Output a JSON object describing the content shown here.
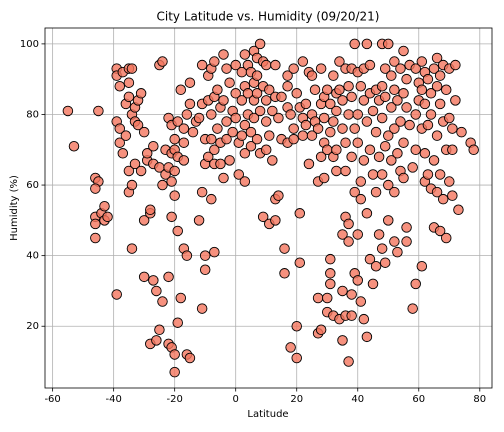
{
  "chart_data": {
    "type": "scatter",
    "title": "City Latitude vs. Humidity (09/20/21)",
    "x_label": "Latitude",
    "y_label": "Humidity (%)",
    "color": "#f4765e",
    "edgecolor": "#000000",
    "grid": true,
    "xlim": [
      -62.5,
      84
    ],
    "ylim": [
      2.5,
      104.5
    ],
    "xticks": [
      -60,
      -40,
      -20,
      0,
      20,
      40,
      60,
      80
    ],
    "yticks": [
      20,
      40,
      60,
      80,
      100
    ],
    "x": [
      -55,
      -53,
      -46,
      -45,
      -46,
      -46,
      -46,
      -46,
      -45,
      -44,
      -43,
      -43,
      -42,
      -39,
      -39,
      -39,
      -39,
      -38,
      -38,
      -37,
      -37,
      -38,
      -36,
      -36,
      -35,
      -35,
      -35,
      -35,
      -35,
      -34,
      -34,
      -34,
      -34,
      -33,
      -33,
      -33,
      -32,
      -32,
      -31,
      -31,
      -30,
      -30,
      -30,
      -29,
      -29,
      -28,
      -28,
      -28,
      -27,
      -27,
      -27,
      -26,
      -26,
      -25,
      -25,
      -25,
      -24,
      -24,
      -24,
      -23,
      -23,
      -22,
      -22,
      -22,
      -22,
      -21,
      -21,
      -21,
      -21,
      -21,
      -20,
      -20,
      -20,
      -20,
      -20,
      -20,
      -19,
      -19,
      -19,
      -19,
      -18,
      -18,
      -17,
      -17,
      -17,
      -17,
      -16,
      -16,
      -16,
      -15,
      -15,
      -15,
      -14,
      -13,
      -12,
      -12,
      -11,
      -11,
      -11,
      -11,
      -10,
      -10,
      -10,
      -10,
      -9,
      -9,
      -9,
      -8,
      -8,
      -8,
      -8,
      -7,
      -7,
      -7,
      -7,
      -7,
      -6,
      -6,
      -5,
      -5,
      -5,
      -4,
      -4,
      -4,
      -3,
      -3,
      -3,
      -2,
      -2,
      -1,
      -1,
      0,
      0,
      0,
      1,
      1,
      2,
      2,
      2,
      3,
      3,
      3,
      3,
      3,
      4,
      4,
      4,
      5,
      5,
      5,
      6,
      6,
      6,
      6,
      7,
      7,
      7,
      7,
      8,
      8,
      8,
      9,
      9,
      9,
      10,
      10,
      10,
      10,
      11,
      11,
      11,
      12,
      12,
      13,
      13,
      13,
      13,
      14,
      14,
      15,
      15,
      16,
      16,
      17,
      17,
      17,
      17,
      18,
      18,
      19,
      19,
      19,
      20,
      20,
      20,
      21,
      21,
      21,
      22,
      22,
      22,
      23,
      23,
      24,
      24,
      25,
      25,
      25,
      26,
      26,
      27,
      27,
      27,
      27,
      28,
      28,
      28,
      28,
      29,
      29,
      29,
      29,
      30,
      30,
      30,
      30,
      31,
      31,
      31,
      31,
      31,
      32,
      32,
      32,
      32,
      33,
      33,
      33,
      33,
      34,
      34,
      34,
      35,
      35,
      35,
      35,
      35,
      36,
      36,
      36,
      36,
      36,
      37,
      37,
      37,
      37,
      37,
      38,
      38,
      38,
      38,
      38,
      39,
      39,
      39,
      39,
      40,
      40,
      40,
      40,
      40,
      41,
      41,
      41,
      41,
      42,
      42,
      42,
      42,
      43,
      43,
      43,
      43,
      44,
      44,
      44,
      44,
      45,
      45,
      45,
      46,
      46,
      46,
      46,
      47,
      47,
      47,
      48,
      48,
      48,
      48,
      48,
      49,
      49,
      49,
      49,
      50,
      50,
      50,
      50,
      51,
      51,
      51,
      52,
      52,
      52,
      52,
      52,
      53,
      53,
      53,
      54,
      54,
      54,
      55,
      55,
      55,
      55,
      56,
      56,
      56,
      56,
      57,
      57,
      58,
      58,
      59,
      59,
      59,
      59,
      60,
      60,
      61,
      61,
      61,
      61,
      62,
      62,
      62,
      62,
      63,
      63,
      63,
      64,
      64,
      64,
      65,
      65,
      65,
      66,
      66,
      66,
      66,
      67,
      67,
      67,
      67,
      68,
      68,
      68,
      69,
      69,
      69,
      70,
      70,
      70,
      71,
      71,
      71,
      72,
      72,
      73,
      74,
      77,
      78
    ],
    "values": [
      81,
      71,
      62,
      61,
      59,
      51,
      49,
      45,
      81,
      52,
      54,
      50,
      51,
      29,
      93,
      91,
      78,
      88,
      76,
      92,
      69,
      72,
      83,
      74,
      93,
      89,
      85,
      64,
      58,
      93,
      60,
      42,
      80,
      82,
      78,
      66,
      84,
      77,
      86,
      64,
      75,
      50,
      34,
      67,
      69,
      52,
      53,
      15,
      71,
      66,
      33,
      30,
      16,
      94,
      65,
      19,
      95,
      60,
      27,
      70,
      63,
      79,
      65,
      34,
      15,
      77,
      69,
      61,
      51,
      14,
      73,
      70,
      64,
      57,
      12,
      7,
      68,
      78,
      21,
      47,
      87,
      28,
      42,
      76,
      67,
      72,
      40,
      80,
      12,
      89,
      83,
      11,
      75,
      78,
      50,
      79,
      94,
      83,
      58,
      25,
      73,
      66,
      36,
      40,
      91,
      84,
      68,
      80,
      73,
      93,
      56,
      95,
      85,
      70,
      66,
      41,
      87,
      76,
      82,
      72,
      66,
      97,
      84,
      62,
      93,
      78,
      73,
      89,
      67,
      81,
      75,
      94,
      86,
      79,
      72,
      63,
      92,
      84,
      74,
      97,
      88,
      77,
      69,
      61,
      94,
      86,
      80,
      92,
      75,
      71,
      98,
      89,
      84,
      79,
      96,
      91,
      86,
      73,
      100,
      81,
      69,
      95,
      88,
      51,
      94,
      84,
      78,
      70,
      87,
      74,
      49,
      81,
      67,
      94,
      85,
      56,
      50,
      79,
      57,
      85,
      73,
      42,
      35,
      91,
      88,
      82,
      72,
      80,
      14,
      93,
      76,
      73,
      86,
      11,
      20,
      82,
      52,
      38,
      95,
      79,
      74,
      83,
      77,
      92,
      66,
      91,
      80,
      74,
      78,
      87,
      28,
      18,
      61,
      76,
      93,
      83,
      68,
      19,
      85,
      79,
      62,
      72,
      87,
      70,
      28,
      24,
      83,
      75,
      35,
      39,
      32,
      91,
      78,
      68,
      23,
      86,
      81,
      70,
      64,
      95,
      87,
      22,
      84,
      76,
      46,
      30,
      16,
      93,
      72,
      64,
      51,
      23,
      88,
      80,
      49,
      44,
      10,
      93,
      85,
      68,
      29,
      23,
      100,
      76,
      58,
      35,
      92,
      80,
      72,
      46,
      33,
      88,
      61,
      56,
      27,
      93,
      84,
      67,
      22,
      100,
      78,
      52,
      17,
      94,
      86,
      70,
      39,
      81,
      63,
      32,
      87,
      75,
      58,
      37,
      84,
      68,
      46,
      100,
      88,
      79,
      63,
      42,
      93,
      85,
      71,
      38,
      100,
      74,
      60,
      50,
      91,
      82,
      67,
      95,
      87,
      76,
      58,
      44,
      84,
      69,
      41,
      93,
      78,
      64,
      98,
      86,
      72,
      62,
      90,
      82,
      48,
      44,
      94,
      77,
      25,
      65,
      93,
      80,
      70,
      32,
      89,
      84,
      95,
      87,
      76,
      37,
      92,
      83,
      69,
      61,
      90,
      77,
      63,
      86,
      80,
      59,
      93,
      67,
      48,
      96,
      88,
      74,
      58,
      91,
      83,
      63,
      47,
      94,
      78,
      56,
      87,
      70,
      45,
      93,
      79,
      61,
      76,
      57,
      70,
      94,
      84,
      53,
      75,
      72,
      70
    ]
  }
}
